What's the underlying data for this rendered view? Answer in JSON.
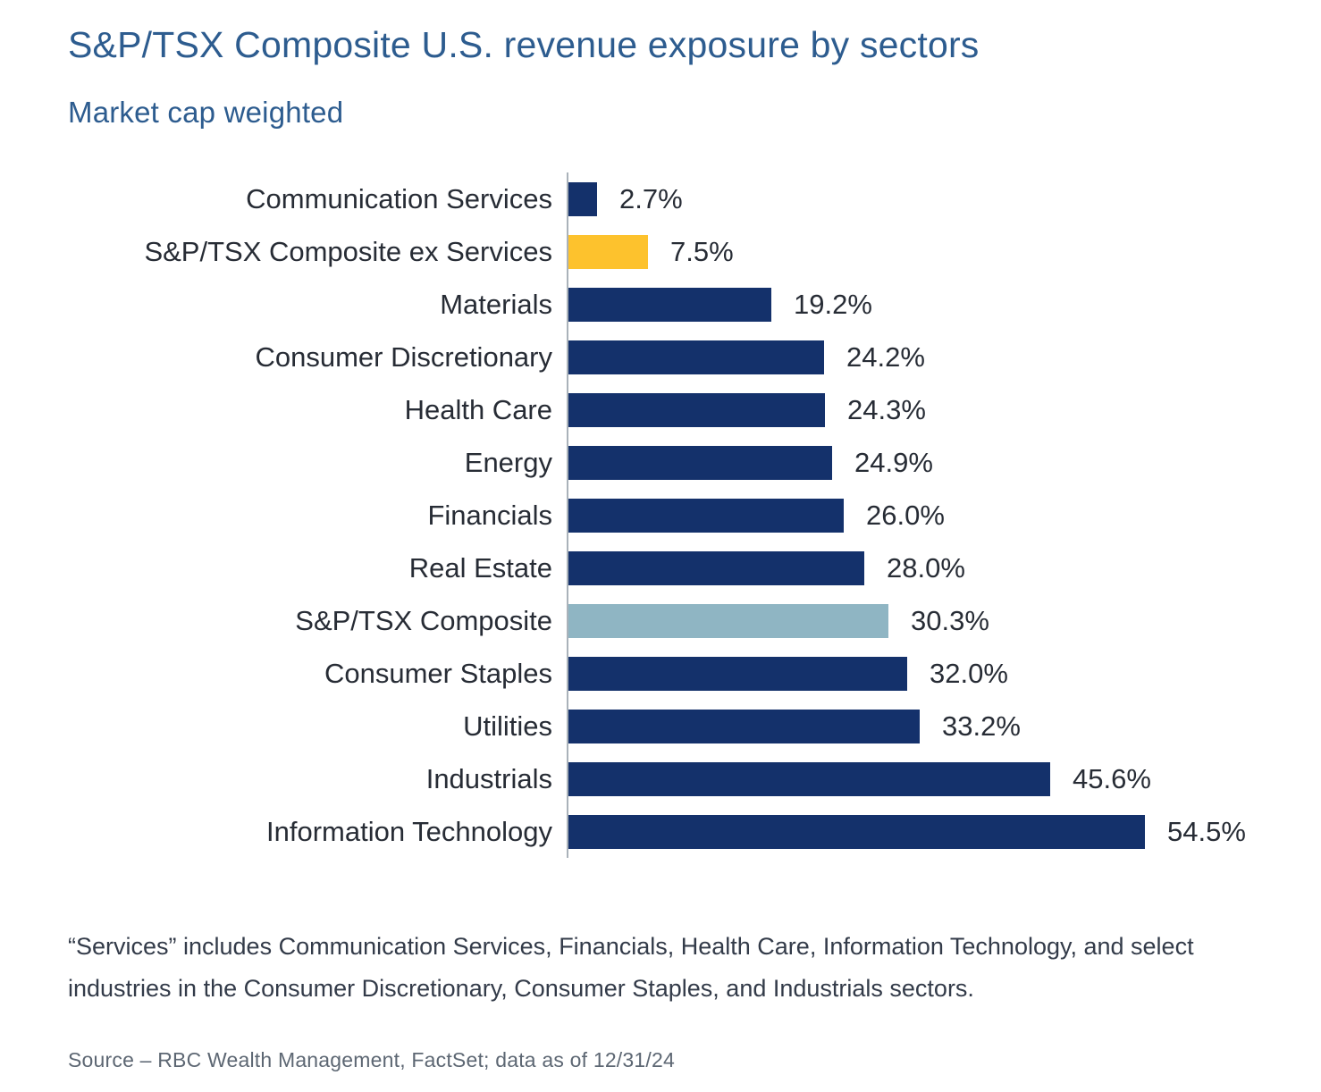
{
  "title": "S&P/TSX Composite U.S. revenue exposure by sectors",
  "subtitle": "Market cap weighted",
  "chart_data": {
    "type": "bar",
    "orientation": "horizontal",
    "title": "S&P/TSX Composite U.S. revenue exposure by sectors",
    "subtitle": "Market cap weighted",
    "categories": [
      "Communication Services",
      "S&P/TSX Composite ex Services",
      "Materials",
      "Consumer Discretionary",
      "Health Care",
      "Energy",
      "Financials",
      "Real Estate",
      "S&P/TSX Composite",
      "Consumer Staples",
      "Utilities",
      "Industrials",
      "Information Technology"
    ],
    "values": [
      2.7,
      7.5,
      19.2,
      24.2,
      24.3,
      24.9,
      26.0,
      28.0,
      30.3,
      32.0,
      33.2,
      45.6,
      54.5
    ],
    "value_labels": [
      "2.7%",
      "7.5%",
      "19.2%",
      "24.2%",
      "24.3%",
      "24.9%",
      "26.0%",
      "28.0%",
      "30.3%",
      "32.0%",
      "33.2%",
      "45.6%",
      "54.5%"
    ],
    "bar_color_keys": [
      "navy",
      "gold",
      "navy",
      "navy",
      "navy",
      "navy",
      "navy",
      "navy",
      "light_blue",
      "navy",
      "navy",
      "navy",
      "navy"
    ],
    "xlim": [
      0,
      60
    ],
    "grid": false,
    "legend": "none",
    "data_labels": "outside-end",
    "sorted": "ascending"
  },
  "colors": {
    "navy": "#14316b",
    "gold": "#fdc22d",
    "light_blue": "#8fb5c3",
    "title_text": "#2d5c8f",
    "label_text": "#272c35",
    "axis_line": "#aab2ba",
    "footnote_text": "#333b49",
    "source_text": "#5d6773"
  },
  "footnote": "“Services” includes Communication Services, Financials, Health Care, Information Technology, and select industries in the Consumer Discretionary, Consumer Staples, and Industrials sectors.",
  "source": "Source – RBC Wealth Management, FactSet; data as of 12/31/24"
}
